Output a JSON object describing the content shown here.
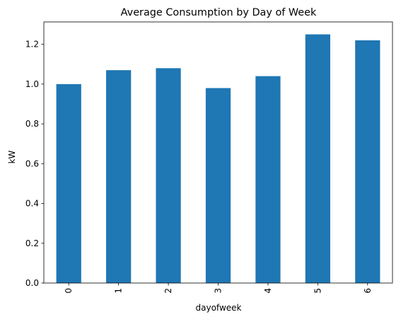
{
  "chart_data": {
    "type": "bar",
    "title": "Average Consumption by Day of Week",
    "xlabel": "dayofweek",
    "ylabel": "kW",
    "categories": [
      "0",
      "1",
      "2",
      "3",
      "4",
      "5",
      "6"
    ],
    "values": [
      1.0,
      1.07,
      1.08,
      0.98,
      1.04,
      1.25,
      1.22
    ],
    "ylim": [
      0,
      1.3125
    ],
    "yticks": [
      0.0,
      0.2,
      0.4,
      0.6,
      0.8,
      1.0,
      1.2
    ],
    "ytick_labels": [
      "0.0",
      "0.2",
      "0.4",
      "0.6",
      "0.8",
      "1.0",
      "1.2"
    ],
    "bar_color": "#1f77b4",
    "grid": false,
    "legend": "none"
  }
}
